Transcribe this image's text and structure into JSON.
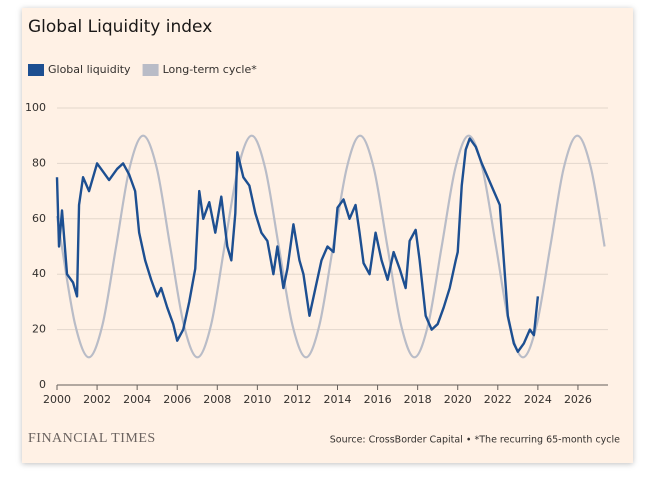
{
  "chart_data": {
    "type": "line",
    "title": "Global Liquidity index",
    "source": "Source: CrossBorder Capital • *The recurring 65-month cycle",
    "brand": "FINANCIAL TIMES",
    "legend": "top-left",
    "grid": true,
    "xlim": [
      2000,
      2027.5
    ],
    "xticks": [
      2000,
      2002,
      2004,
      2006,
      2008,
      2010,
      2012,
      2014,
      2016,
      2018,
      2020,
      2022,
      2024,
      2026
    ],
    "ylim": [
      0,
      100
    ],
    "yticks": [
      0,
      20,
      40,
      60,
      80,
      100
    ],
    "series": [
      {
        "name": "Global liquidity",
        "color": "#1d4f91",
        "smooth": false,
        "x": [
          2000.0,
          2000.1,
          2000.25,
          2000.5,
          2000.8,
          2001.0,
          2001.1,
          2001.3,
          2001.6,
          2002.0,
          2002.3,
          2002.6,
          2003.0,
          2003.3,
          2003.6,
          2003.9,
          2004.1,
          2004.4,
          2004.7,
          2005.0,
          2005.2,
          2005.5,
          2005.8,
          2006.0,
          2006.3,
          2006.6,
          2006.9,
          2007.1,
          2007.3,
          2007.6,
          2007.9,
          2008.2,
          2008.5,
          2008.7,
          2008.9,
          2009.0,
          2009.3,
          2009.6,
          2009.9,
          2010.2,
          2010.5,
          2010.8,
          2011.0,
          2011.3,
          2011.5,
          2011.8,
          2012.1,
          2012.3,
          2012.6,
          2012.9,
          2013.2,
          2013.5,
          2013.8,
          2014.0,
          2014.3,
          2014.6,
          2014.9,
          2015.1,
          2015.3,
          2015.6,
          2015.9,
          2016.2,
          2016.5,
          2016.8,
          2017.1,
          2017.4,
          2017.6,
          2017.9,
          2018.1,
          2018.4,
          2018.7,
          2019.0,
          2019.3,
          2019.6,
          2019.9,
          2020.0,
          2020.2,
          2020.4,
          2020.6,
          2020.9,
          2021.2,
          2021.5,
          2021.8,
          2022.1,
          2022.3,
          2022.5,
          2022.8,
          2023.0,
          2023.3,
          2023.6,
          2023.8,
          2024.0
        ],
        "values": [
          75,
          50,
          63,
          40,
          37,
          32,
          65,
          75,
          70,
          80,
          77,
          74,
          78,
          80,
          76,
          70,
          55,
          45,
          38,
          32,
          35,
          28,
          22,
          16,
          20,
          30,
          42,
          70,
          60,
          66,
          55,
          68,
          50,
          45,
          62,
          84,
          75,
          72,
          62,
          55,
          52,
          40,
          50,
          35,
          42,
          58,
          45,
          40,
          25,
          35,
          45,
          50,
          48,
          64,
          67,
          60,
          65,
          55,
          44,
          40,
          55,
          45,
          38,
          48,
          42,
          35,
          52,
          56,
          45,
          25,
          20,
          22,
          28,
          35,
          45,
          48,
          72,
          85,
          89,
          86,
          80,
          75,
          70,
          65,
          45,
          25,
          15,
          12,
          15,
          20,
          18,
          32
        ]
      },
      {
        "name": "Long-term cycle*",
        "color": "#b9bcc7",
        "smooth": true,
        "x": [
          2000.0,
          2000.24,
          2000.91,
          2001.59,
          2002.27,
          2002.95,
          2003.62,
          2004.3,
          2004.98,
          2005.65,
          2006.33,
          2007.01,
          2007.69,
          2008.36,
          2009.04,
          2009.72,
          2010.39,
          2011.07,
          2011.75,
          2012.43,
          2013.1,
          2013.78,
          2014.46,
          2015.13,
          2015.81,
          2016.49,
          2017.17,
          2017.84,
          2018.52,
          2019.2,
          2019.88,
          2020.55,
          2021.23,
          2021.91,
          2022.58,
          2023.26,
          2023.94,
          2024.62,
          2025.29,
          2025.97,
          2026.65,
          2027.33
        ],
        "values": [
          61,
          50,
          21.7,
          10,
          21.7,
          50,
          78.3,
          90,
          78.3,
          50,
          21.7,
          10,
          21.7,
          50,
          78.3,
          90,
          78.3,
          50,
          21.7,
          10,
          21.7,
          50,
          78.3,
          90,
          78.3,
          50,
          21.7,
          10,
          21.7,
          50,
          78.3,
          90,
          78.3,
          50,
          21.7,
          10,
          21.7,
          50,
          78.3,
          90,
          78.3,
          50
        ]
      }
    ]
  }
}
